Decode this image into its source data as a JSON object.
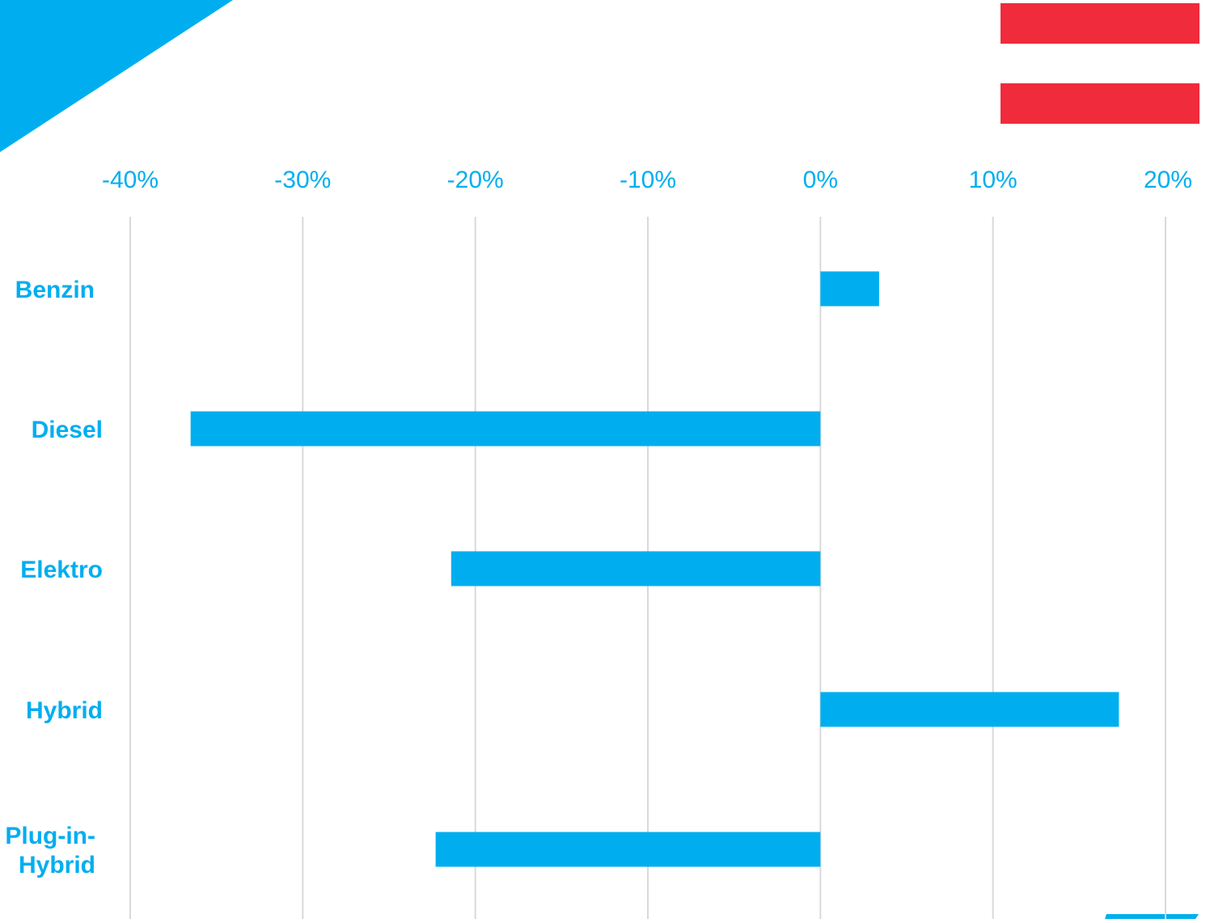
{
  "colors": {
    "accent": "#00AEEF",
    "flag_red": "#EF2B3C",
    "grid": "#D9D9D9",
    "background": "#FFFFFF"
  },
  "decorations": {
    "corner_shape": "blue-triangle",
    "flag": "austria-flag-stripes",
    "bottom_accent": "blue-bar-corner"
  },
  "chart_data": {
    "type": "bar",
    "orientation": "horizontal",
    "title": "",
    "xlabel": "",
    "ylabel": "",
    "categories": [
      "Benzin",
      "Diesel",
      "Elektro",
      "Hybrid",
      "Plug-in-Hybrid"
    ],
    "category_lines": [
      [
        "Benzin"
      ],
      [
        "Diesel"
      ],
      [
        "Elektro"
      ],
      [
        "Hybrid"
      ],
      [
        "Plug-in-",
        "Hybrid"
      ]
    ],
    "values": [
      3.4,
      -36.5,
      -21.4,
      17.3,
      -22.3
    ],
    "value_unit": "%",
    "xlim": [
      -40,
      20
    ],
    "ticks": [
      -40,
      -30,
      -20,
      -10,
      0,
      10,
      20
    ],
    "tick_labels": [
      "-40%",
      "-30%",
      "-20%",
      "-10%",
      "0%",
      "10%",
      "20%"
    ],
    "grid": true,
    "legend": "none"
  }
}
